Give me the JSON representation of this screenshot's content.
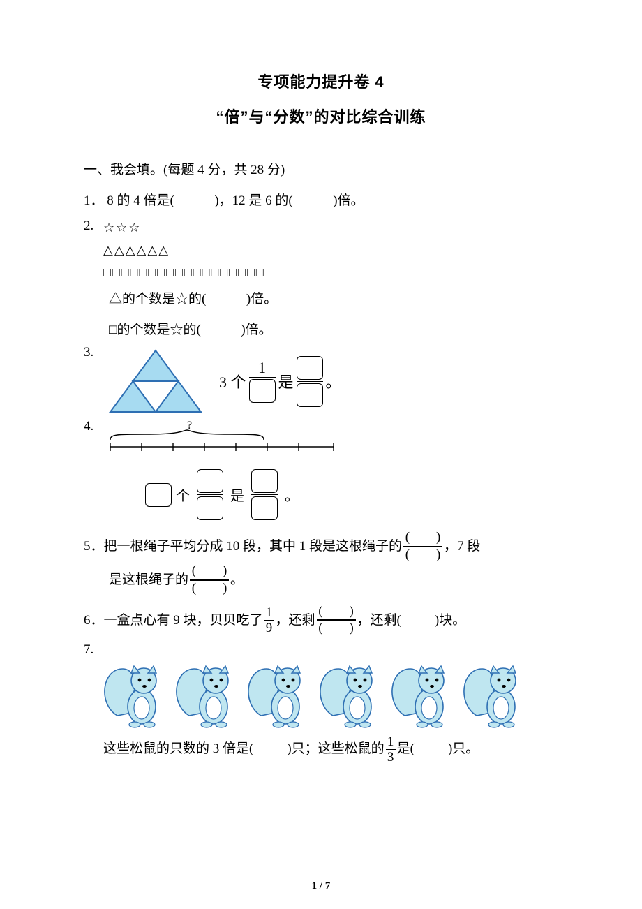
{
  "page": {
    "number": "1",
    "total": "7"
  },
  "title": "专项能力提升卷 4",
  "subtitle": "“倍”与“分数”的对比综合训练",
  "section1": {
    "heading": "一、我会填。(每题 4 分，共 28 分)"
  },
  "q1": {
    "num": "1．",
    "prefix": "8 的 4 倍是(",
    "mid": ")，12 是 6 的(",
    "suffix": ")倍。"
  },
  "q2": {
    "num": "2.",
    "shapes": {
      "stars": "☆☆☆",
      "triangles": "△△△△△△",
      "squares": "□□□□□□□□□□□□□□□□□□"
    },
    "line1_a": "△的个数是☆的(",
    "line1_b": ")倍。",
    "line2_a": "□的个数是☆的(",
    "line2_b": ")倍。"
  },
  "q3": {
    "num": "3.",
    "text_a": "3 个",
    "frac_top": "1",
    "text_b": "是",
    "text_c": "。",
    "tri_fill": "#a7dbf1",
    "tri_stroke": "#2e6fb3"
  },
  "q4": {
    "num": "4.",
    "qmark": "?",
    "text_a": "个",
    "text_b": "是",
    "text_c": "。"
  },
  "q5": {
    "num": "5．",
    "a": "把一根绳子平均分成 10 段，其中 1 段是这根绳子的",
    "b": "，7 段",
    "c": "是这根绳子的",
    "d": "。",
    "frac_paren_top": "(　　)",
    "frac_paren_bot": "(　　)"
  },
  "q6": {
    "num": "6．",
    "a": "一盒点心有 9 块，贝贝吃了",
    "frac1_top": "1",
    "frac1_bot": "9",
    "b": "，还剩",
    "c": "，还剩(",
    "d": ")块。"
  },
  "q7": {
    "num": "7.",
    "count": 6,
    "color_body": "#bfe6f0",
    "color_stroke": "#2e6fb3",
    "a": "这些松鼠的只数的 3 倍是(",
    "b": ")只；这些松鼠的",
    "frac_top": "1",
    "frac_bot": "3",
    "c": "是(",
    "d": ")只。"
  }
}
